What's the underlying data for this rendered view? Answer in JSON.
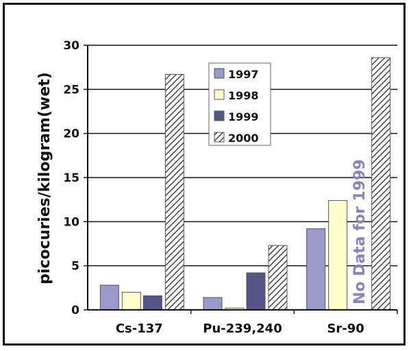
{
  "chart_data": {
    "type": "bar",
    "title": "",
    "xlabel": "",
    "ylabel": "picocuries/kilogram(wet)",
    "ylim": [
      0,
      30
    ],
    "yticks": [
      0,
      5,
      10,
      15,
      20,
      25,
      30
    ],
    "categories": [
      "Cs-137",
      "Pu-239,240",
      "Sr-90"
    ],
    "series": [
      {
        "name": "1997",
        "values": [
          2.8,
          1.4,
          9.2
        ],
        "color": "#9999cc",
        "pattern": "solid"
      },
      {
        "name": "1998",
        "values": [
          2.0,
          0.2,
          12.4
        ],
        "color": "#ffffcc",
        "pattern": "solid"
      },
      {
        "name": "1999",
        "values": [
          1.6,
          4.2,
          null
        ],
        "color": "#555588",
        "pattern": "solid"
      },
      {
        "name": "2000",
        "values": [
          26.7,
          7.3,
          28.6
        ],
        "color": "#ffffff",
        "pattern": "diagonal-hatch"
      }
    ],
    "grid": true,
    "legend_position": "top-center",
    "annotations": [
      {
        "text": "No Data for 1999",
        "category": "Sr-90"
      }
    ]
  }
}
